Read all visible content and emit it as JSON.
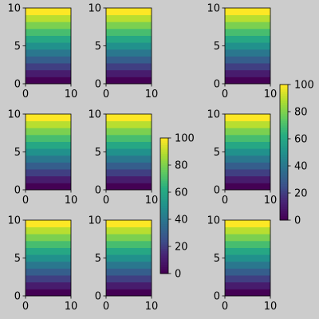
{
  "figure": {
    "background": "#cccccc"
  },
  "chart_data": {
    "type": "heatmap",
    "grid": false,
    "subplot_rows": 3,
    "subplot_cols": 3,
    "panels_per_row": 3,
    "colormap": "viridis",
    "z_rows_bottom_to_top": [
      0,
      10,
      20,
      30,
      40,
      50,
      60,
      70,
      80,
      90,
      100
    ],
    "panel_axes": {
      "xlim": [
        0,
        10
      ],
      "ylim": [
        0,
        10
      ],
      "xticks": [
        0,
        10
      ],
      "yticks": [
        0,
        5,
        10
      ],
      "xtick_labels": [
        "0",
        "10"
      ],
      "ytick_labels": [
        "0",
        "5",
        "10"
      ]
    },
    "colorbars": [
      {
        "range": [
          0,
          100
        ],
        "ticks": [
          0,
          20,
          40,
          60,
          80,
          100
        ],
        "tick_labels": [
          "0",
          "20",
          "40",
          "60",
          "80",
          "100"
        ]
      },
      {
        "range": [
          0,
          100
        ],
        "ticks": [
          0,
          20,
          40,
          60,
          80,
          100
        ],
        "tick_labels": [
          "0",
          "20",
          "40",
          "60",
          "80",
          "100"
        ]
      }
    ]
  }
}
